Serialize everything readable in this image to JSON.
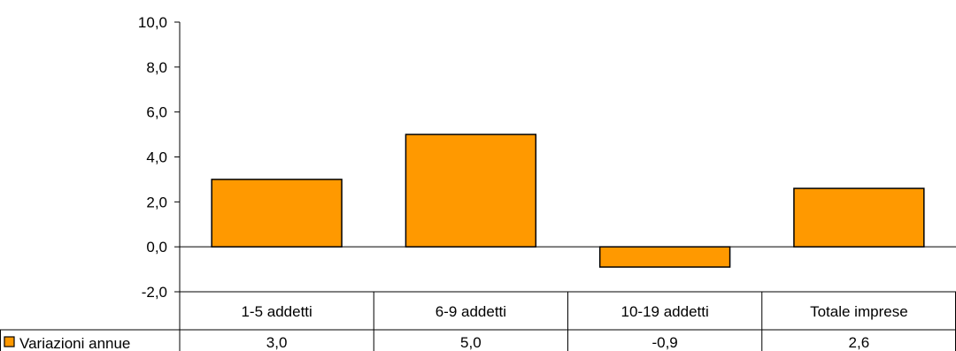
{
  "chart_data": {
    "type": "bar",
    "categories": [
      "1-5 addetti",
      "6-9 addetti",
      "10-19 addetti",
      "Totale imprese"
    ],
    "series": [
      {
        "name": "Variazioni annue",
        "values": [
          3.0,
          5.0,
          -0.9,
          2.6
        ],
        "value_labels": [
          "3,0",
          "5,0",
          "-0,9",
          "2,6"
        ]
      }
    ],
    "ylim": [
      -2.0,
      10.0
    ],
    "yticks": [
      -2.0,
      0.0,
      2.0,
      4.0,
      6.0,
      8.0,
      10.0
    ],
    "ytick_labels": [
      "-2,0",
      "0,0",
      "2,0",
      "4,0",
      "6,0",
      "8,0",
      "10,0"
    ],
    "grid": false,
    "legend": "bottom-left in data table",
    "data_table": true,
    "colors": {
      "bar": "#FF9900",
      "outline": "#000000"
    }
  }
}
